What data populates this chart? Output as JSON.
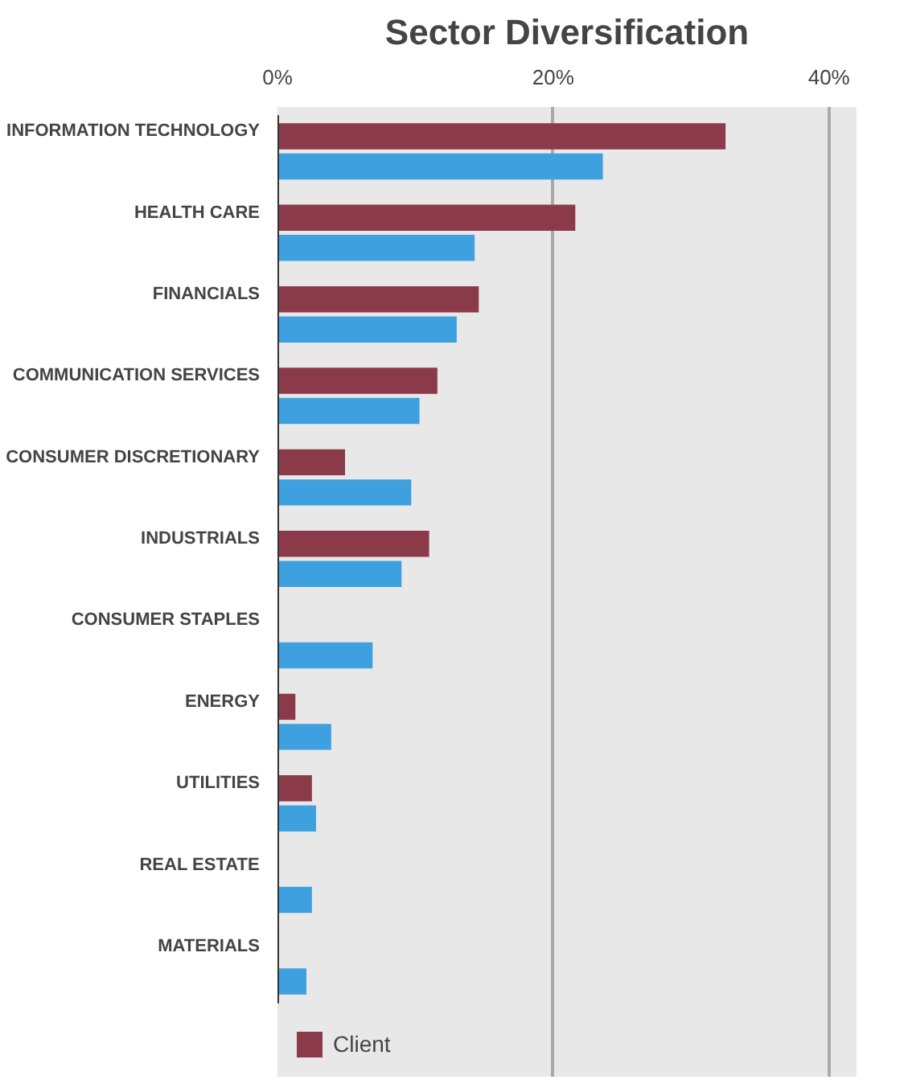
{
  "chart_data": {
    "type": "bar",
    "orientation": "horizontal",
    "title": "Sector Diversification",
    "categories": [
      "INFORMATION TECHNOLOGY",
      "HEALTH CARE",
      "FINANCIALS",
      "COMMUNICATION SERVICES",
      "CONSUMER DISCRETIONARY",
      "INDUSTRIALS",
      "CONSUMER STAPLES",
      "ENERGY",
      "UTILITIES",
      "REAL ESTATE",
      "MATERIALS"
    ],
    "series": [
      {
        "name": "Client",
        "color": "#8b3a4a",
        "values": [
          32.5,
          21.6,
          14.6,
          11.6,
          4.9,
          11.0,
          0,
          1.3,
          2.5,
          0,
          0
        ]
      },
      {
        "color": "#3fa0e0",
        "values": [
          23.6,
          14.3,
          13.0,
          10.3,
          9.7,
          9.0,
          6.9,
          3.9,
          2.8,
          2.5,
          2.1
        ]
      }
    ],
    "xlim": [
      0,
      42
    ],
    "xticks": [
      {
        "value": 0,
        "label": "0%"
      },
      {
        "value": 20,
        "label": "20%"
      },
      {
        "value": 40,
        "label": "40%"
      }
    ],
    "grid": "x",
    "legend": "bottom left"
  }
}
